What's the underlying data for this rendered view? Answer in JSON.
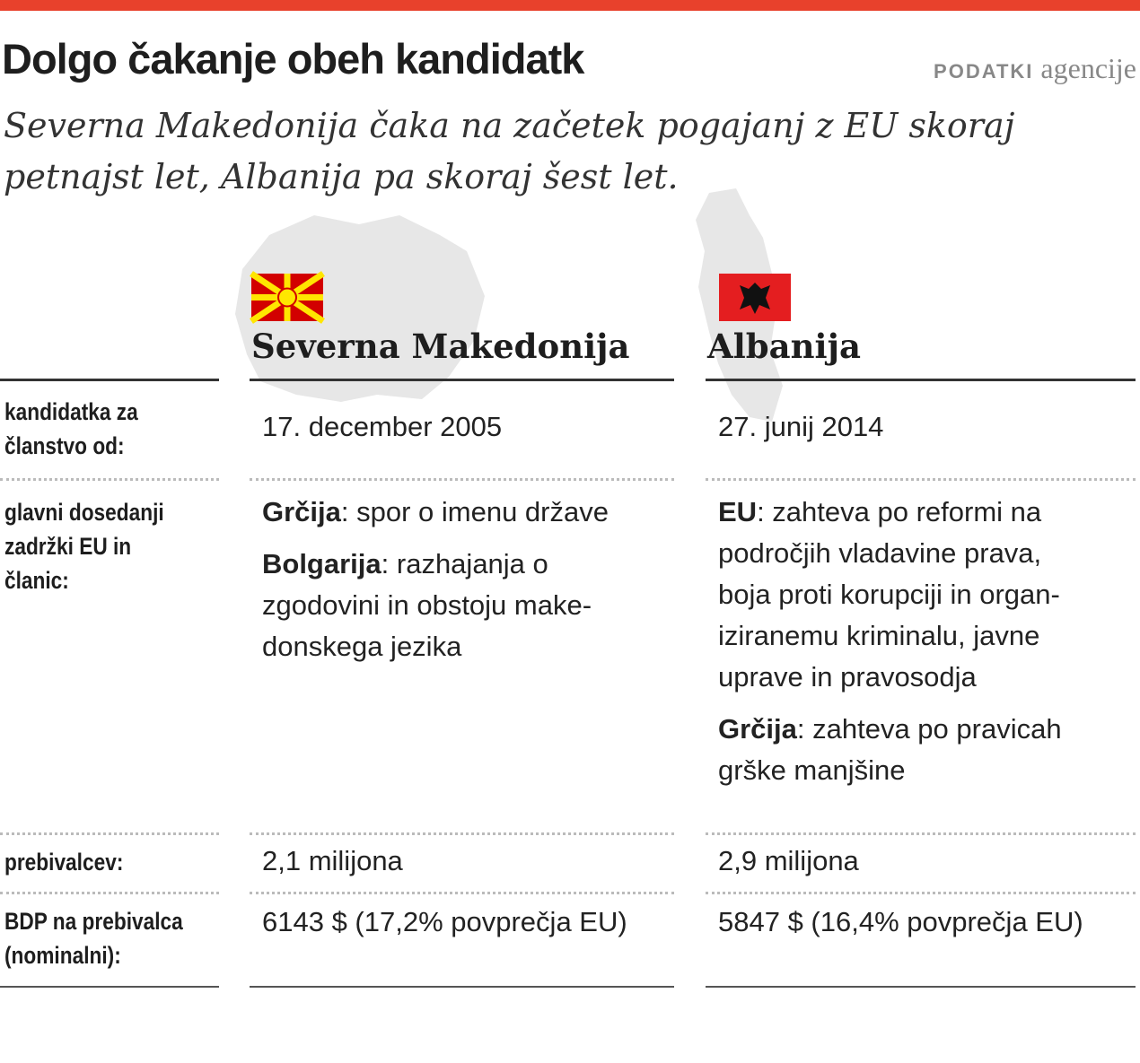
{
  "header": {
    "title": "Dolgo čakanje obeh kandidatk",
    "source_label": "PODATKI",
    "source": "agencije",
    "subtitle_lines": [
      "Severna Makedonija čaka na začetek pogajanj z EU skoraj",
      "petnajst let, Albanija pa skoraj šest let."
    ]
  },
  "columns": [
    "Severna Makedonija",
    "Albanija"
  ],
  "rows": [
    {
      "label_lines": [
        "kandidatka za",
        "članstvo od:"
      ],
      "cells": [
        [
          {
            "lines": [
              "17. december 2005"
            ]
          }
        ],
        [
          {
            "lines": [
              "27. junij 2014"
            ]
          }
        ]
      ]
    },
    {
      "label_lines": [
        "glavni dosedanji",
        "zadržki EU in",
        "članic:"
      ],
      "cells": [
        [
          {
            "bold": "Grčija",
            "lines": [
              ": spor o imenu države"
            ]
          },
          {
            "bold": "Bolgarija",
            "lines": [
              ": razhajanja o",
              "zgodovini in obstoju make-",
              "donskega jezika"
            ]
          }
        ],
        [
          {
            "bold": "EU",
            "lines": [
              ": zahteva po reformi na",
              "področjih vladavine prava,",
              "boja proti korupciji in organ-",
              "iziranemu kriminalu, javne",
              "uprave in pravosodja"
            ]
          },
          {
            "bold": "Grčija",
            "lines": [
              ": zahteva po pravicah",
              "grške manjšine"
            ]
          }
        ]
      ]
    },
    {
      "label_lines": [
        "prebivalcev:"
      ],
      "cells": [
        [
          {
            "lines": [
              "2,1 milijona"
            ]
          }
        ],
        [
          {
            "lines": [
              "2,9 milijona"
            ]
          }
        ]
      ]
    },
    {
      "label_lines": [
        "BDP na prebivalca",
        "(nominalni):"
      ],
      "cells": [
        [
          {
            "lines": [
              "6143 $ (17,2% povprečja EU)"
            ]
          }
        ],
        [
          {
            "lines": [
              "5847 $ (16,4% povprečja EU)"
            ]
          }
        ]
      ]
    }
  ]
}
